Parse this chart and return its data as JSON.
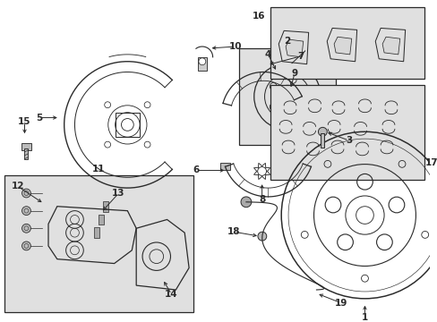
{
  "bg_color": "#ffffff",
  "box_fill": "#e0e0e0",
  "line_color": "#2a2a2a",
  "fig_width": 4.89,
  "fig_height": 3.6,
  "dpi": 100,
  "xlim": [
    0,
    489
  ],
  "ylim": [
    0,
    360
  ]
}
